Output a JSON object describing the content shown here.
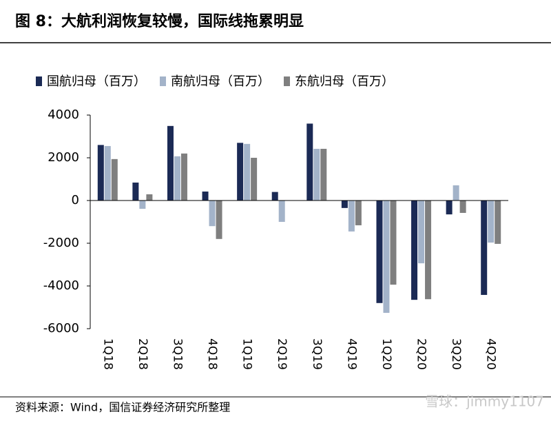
{
  "chart_data": {
    "type": "bar",
    "title": "图 8：大航利润恢复较慢，国际线拖累明显",
    "source": "资料来源：Wind，国信证券经济研究所整理",
    "watermark": "雪球：jimmy1107",
    "categories": [
      "1Q18",
      "2Q18",
      "3Q18",
      "4Q18",
      "1Q19",
      "2Q19",
      "3Q19",
      "4Q19",
      "1Q20",
      "2Q20",
      "3Q20",
      "4Q20"
    ],
    "series": [
      {
        "name": "国航归母（百万）",
        "color": "#1b2a55",
        "values": [
          2600,
          840,
          3490,
          420,
          2700,
          400,
          3600,
          -350,
          -4800,
          -4650,
          -650,
          -4420
        ]
      },
      {
        "name": "南航归母（百万）",
        "color": "#a3b3c9",
        "values": [
          2550,
          -390,
          2070,
          -1200,
          2650,
          -1000,
          2420,
          -1450,
          -5260,
          -2940,
          710,
          -1970
        ]
      },
      {
        "name": "东航归母（百万）",
        "color": "#7f7f7f",
        "values": [
          1940,
          290,
          2200,
          -1800,
          2000,
          0,
          2420,
          -1160,
          -3940,
          -4620,
          -580,
          -2030
        ]
      }
    ],
    "ylim": [
      -6000,
      4000
    ],
    "yticks": [
      -6000,
      -4000,
      -2000,
      0,
      2000,
      4000
    ]
  }
}
